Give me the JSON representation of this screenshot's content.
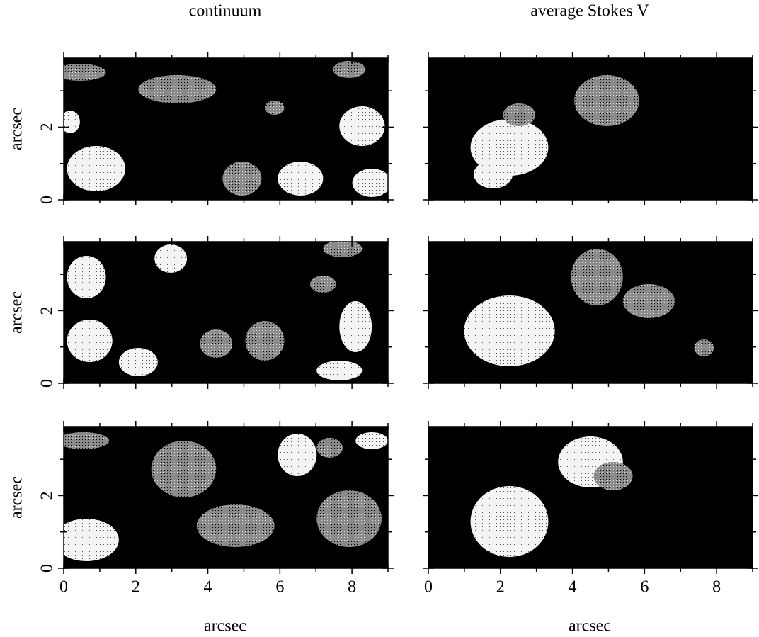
{
  "columns": [
    {
      "title": "continuum"
    },
    {
      "title": "average Stokes V"
    }
  ],
  "x_label": "arcsec",
  "y_label": "arcsec",
  "xlim": [
    0,
    9
  ],
  "xticks": [
    0,
    2,
    4,
    6,
    8
  ],
  "xminor": [
    1,
    3,
    5,
    7,
    9
  ],
  "ylim": [
    0,
    3.9
  ],
  "yticks": [
    0,
    2
  ],
  "yminor": [
    1,
    3
  ]
}
